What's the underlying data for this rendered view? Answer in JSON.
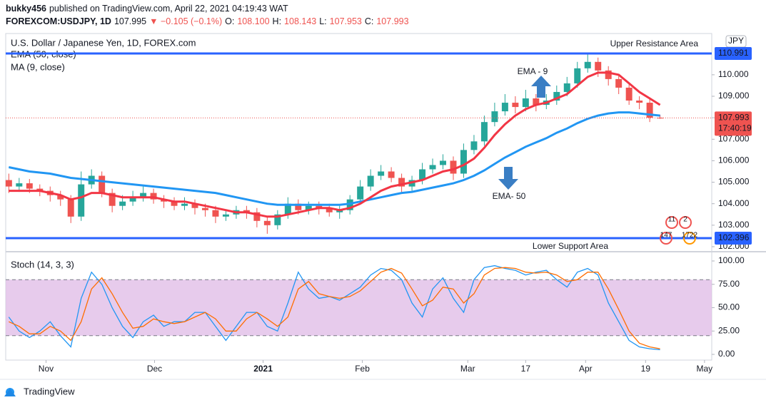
{
  "header": {
    "line1": [
      {
        "text": "bukky456",
        "bold": true
      },
      {
        "text": "published on TradingView.com, April 22, 2021 04:19:43 WAT",
        "bold": false
      }
    ],
    "line2": [
      {
        "text": "FOREXCOM:USDJPY, 1D",
        "color": "#131722",
        "bold": true
      },
      {
        "text": "107.995",
        "color": "#131722",
        "bold": false
      },
      {
        "text": "▼ −0.105 (−0.1%)",
        "color": "#ef5350",
        "bold": false
      },
      {
        "text": "O:",
        "color": "#131722",
        "bold": false
      },
      {
        "text": "108.100",
        "color": "#ef5350",
        "bold": false
      },
      {
        "text": "H:",
        "color": "#131722",
        "bold": false
      },
      {
        "text": "108.143",
        "color": "#ef5350",
        "bold": false
      },
      {
        "text": "L:",
        "color": "#131722",
        "bold": false
      },
      {
        "text": "107.953",
        "color": "#ef5350",
        "bold": false
      },
      {
        "text": "C:",
        "color": "#131722",
        "bold": false
      },
      {
        "text": "107.993",
        "color": "#ef5350",
        "bold": false
      }
    ]
  },
  "footer": {
    "brand": "TradingView"
  },
  "chart_data": [
    {
      "type": "candlestick",
      "title": "U.S. Dollar / Japanese Yen, 1D, FOREX.com",
      "currency": "JPY",
      "up_color": "#26a69a",
      "down_color": "#ef5350",
      "xlim": [
        -0.3,
        68
      ],
      "ylim": [
        101.8,
        111.92
      ],
      "yticks": [
        {
          "value": 102,
          "label": "102.000"
        },
        {
          "value": 103,
          "label": "103.000"
        },
        {
          "value": 104,
          "label": "104.000"
        },
        {
          "value": 105,
          "label": "105.000"
        },
        {
          "value": 106,
          "label": "106.000"
        },
        {
          "value": 107,
          "label": "107.000"
        },
        {
          "value": 108,
          "label": "108.000"
        },
        {
          "value": 109,
          "label": "109.000"
        },
        {
          "value": 110,
          "label": "110.000"
        }
      ],
      "open": [
        105.1,
        104.8,
        104.95,
        104.7,
        104.6,
        104.4,
        104.2,
        103.4,
        104.9,
        105.3,
        104.5,
        103.9,
        104.1,
        104.3,
        104.5,
        104.2,
        104.1,
        103.9,
        104.0,
        103.8,
        103.7,
        103.4,
        103.5,
        103.7,
        103.6,
        103.2,
        103.0,
        103.5,
        104.0,
        103.7,
        103.9,
        103.8,
        103.6,
        103.7,
        104.2,
        104.8,
        105.3,
        105.5,
        105.2,
        104.8,
        105.1,
        105.6,
        105.8,
        106.0,
        105.4,
        106.5,
        106.9,
        107.8,
        108.3,
        108.7,
        108.5,
        108.9,
        108.6,
        108.8,
        109.2,
        109.6,
        110.3,
        110.6,
        110.2,
        109.8,
        109.4,
        108.8,
        108.7,
        108.0
      ],
      "high": [
        105.4,
        105.2,
        105.15,
        104.9,
        104.8,
        104.6,
        104.4,
        105.5,
        105.6,
        105.5,
        104.7,
        104.4,
        104.6,
        104.8,
        104.7,
        104.4,
        104.3,
        104.3,
        104.2,
        104.0,
        103.9,
        103.7,
        103.9,
        103.9,
        103.8,
        103.4,
        103.7,
        104.3,
        104.2,
        104.1,
        104.1,
        104.0,
        103.9,
        104.4,
        105.1,
        105.6,
        105.8,
        105.7,
        105.4,
        105.3,
        105.9,
        106.1,
        106.3,
        106.2,
        106.8,
        107.2,
        108.1,
        108.7,
        109.1,
        109.0,
        109.3,
        109.1,
        109.1,
        109.5,
        109.9,
        110.6,
        110.97,
        110.8,
        110.4,
        110.0,
        109.6,
        109.0,
        108.9,
        108.14
      ],
      "low": [
        104.5,
        104.55,
        104.5,
        104.35,
        104.1,
        103.9,
        103.1,
        103.2,
        104.7,
        104.3,
        103.6,
        103.7,
        103.9,
        104.1,
        104.0,
        103.8,
        103.7,
        103.7,
        103.5,
        103.4,
        103.1,
        103.2,
        103.3,
        103.3,
        102.9,
        102.6,
        102.8,
        103.3,
        103.5,
        103.5,
        103.5,
        103.4,
        103.3,
        103.5,
        104.0,
        104.6,
        105.1,
        105.0,
        104.5,
        104.6,
        104.9,
        105.4,
        105.6,
        105.1,
        105.2,
        106.3,
        106.7,
        107.6,
        108.1,
        108.2,
        108.3,
        108.3,
        108.4,
        108.6,
        109.0,
        109.4,
        110.1,
        109.9,
        109.5,
        109.1,
        108.6,
        108.4,
        107.8,
        107.95
      ],
      "close": [
        104.8,
        104.95,
        104.7,
        104.6,
        104.4,
        104.2,
        103.4,
        104.9,
        105.3,
        104.5,
        103.9,
        104.1,
        104.3,
        104.5,
        104.2,
        104.1,
        103.9,
        104.0,
        103.8,
        103.7,
        103.4,
        103.5,
        103.7,
        103.6,
        103.2,
        103.0,
        103.5,
        104.0,
        103.7,
        103.9,
        103.8,
        103.6,
        103.7,
        104.2,
        104.8,
        105.3,
        105.5,
        105.2,
        104.8,
        105.1,
        105.6,
        105.8,
        106.0,
        105.4,
        106.5,
        106.9,
        107.8,
        108.3,
        108.7,
        108.5,
        108.9,
        108.6,
        108.8,
        109.2,
        109.6,
        110.3,
        110.6,
        110.2,
        109.8,
        109.4,
        108.8,
        108.7,
        108.0,
        107.99
      ],
      "series": [
        {
          "name": "EMA (50, close)",
          "color": "#2196f3",
          "values": [
            105.7,
            105.6,
            105.5,
            105.45,
            105.4,
            105.3,
            105.2,
            105.15,
            105.1,
            105.05,
            105.0,
            104.95,
            104.9,
            104.85,
            104.8,
            104.75,
            104.7,
            104.65,
            104.6,
            104.55,
            104.5,
            104.4,
            104.3,
            104.2,
            104.1,
            104.0,
            103.95,
            103.95,
            103.95,
            103.95,
            103.95,
            103.95,
            103.95,
            104.0,
            104.1,
            104.2,
            104.3,
            104.4,
            104.5,
            104.55,
            104.65,
            104.75,
            104.85,
            104.95,
            105.1,
            105.3,
            105.55,
            105.85,
            106.15,
            106.4,
            106.65,
            106.85,
            107.05,
            107.3,
            107.5,
            107.75,
            107.95,
            108.1,
            108.2,
            108.25,
            108.25,
            108.2,
            108.15,
            108.1
          ]
        },
        {
          "name": "MA (9, close)",
          "color": "#f23645",
          "values": [
            104.6,
            104.6,
            104.6,
            104.6,
            104.5,
            104.4,
            104.2,
            104.3,
            104.5,
            104.5,
            104.4,
            104.3,
            104.3,
            104.3,
            104.3,
            104.2,
            104.1,
            104.1,
            104.0,
            103.9,
            103.8,
            103.7,
            103.6,
            103.6,
            103.5,
            103.4,
            103.4,
            103.5,
            103.6,
            103.7,
            103.8,
            103.8,
            103.7,
            103.8,
            104.0,
            104.3,
            104.6,
            104.8,
            104.9,
            105.0,
            105.1,
            105.3,
            105.5,
            105.6,
            105.8,
            106.1,
            106.6,
            107.2,
            107.7,
            108.1,
            108.4,
            108.6,
            108.7,
            108.9,
            109.1,
            109.5,
            109.9,
            110.1,
            110.1,
            110.0,
            109.6,
            109.2,
            108.9,
            108.6
          ]
        }
      ],
      "levels": [
        {
          "value": 110.991,
          "color": "#2962ff",
          "annotation": "Upper Resistance Area"
        },
        {
          "value": 102.396,
          "color": "#2962ff",
          "annotation": "Lower Support Area"
        }
      ],
      "last_price": 107.993,
      "last_color": "#ef5350",
      "countdown": "17:40:19",
      "annotations": [
        "EMA - 9",
        "EMA- 50"
      ],
      "events": [
        "11",
        "2",
        "147",
        "1722"
      ]
    },
    {
      "type": "line",
      "title": "Stoch (14, 3, 3)",
      "xlim": [
        -0.3,
        68
      ],
      "xticks": [
        {
          "value": 3.6,
          "label": "Nov"
        },
        {
          "value": 14.1,
          "label": "Dec"
        },
        {
          "value": 24.6,
          "label": "2021"
        },
        {
          "value": 34.2,
          "label": "Feb"
        },
        {
          "value": 44.4,
          "label": "Mar"
        },
        {
          "value": 50.0,
          "label": "17"
        },
        {
          "value": 55.8,
          "label": "Apr"
        },
        {
          "value": 61.6,
          "label": "19"
        },
        {
          "value": 67.3,
          "label": "May"
        }
      ],
      "ylim": [
        -6.1,
        108.4
      ],
      "yticks": [
        {
          "value": 0,
          "label": "0.00"
        },
        {
          "value": 25,
          "label": "25.00"
        },
        {
          "value": 50,
          "label": "50.00"
        },
        {
          "value": 75,
          "label": "75.00"
        },
        {
          "value": 100,
          "label": "100.00"
        }
      ],
      "band": [
        20,
        80
      ],
      "band_color": "#e1bee7",
      "series": [
        {
          "color": "#2196f3",
          "values": [
            40,
            25,
            18,
            25,
            35,
            20,
            8,
            60,
            88,
            75,
            50,
            30,
            18,
            35,
            42,
            30,
            35,
            35,
            45,
            45,
            30,
            15,
            30,
            45,
            45,
            30,
            25,
            55,
            88,
            70,
            60,
            62,
            58,
            65,
            72,
            85,
            92,
            90,
            80,
            55,
            40,
            70,
            82,
            60,
            45,
            80,
            93,
            95,
            92,
            90,
            85,
            88,
            90,
            80,
            72,
            88,
            92,
            85,
            55,
            35,
            15,
            8,
            6,
            5
          ]
        },
        {
          "color": "#ff6d00",
          "values": [
            35,
            30,
            22,
            22,
            30,
            25,
            15,
            35,
            70,
            82,
            65,
            45,
            28,
            30,
            38,
            35,
            33,
            35,
            40,
            45,
            38,
            25,
            25,
            38,
            45,
            38,
            30,
            40,
            70,
            78,
            65,
            62,
            60,
            62,
            68,
            78,
            88,
            92,
            87,
            70,
            52,
            58,
            72,
            70,
            55,
            65,
            85,
            92,
            93,
            92,
            88,
            87,
            88,
            85,
            78,
            80,
            88,
            88,
            70,
            48,
            25,
            12,
            8,
            6
          ]
        }
      ]
    }
  ]
}
